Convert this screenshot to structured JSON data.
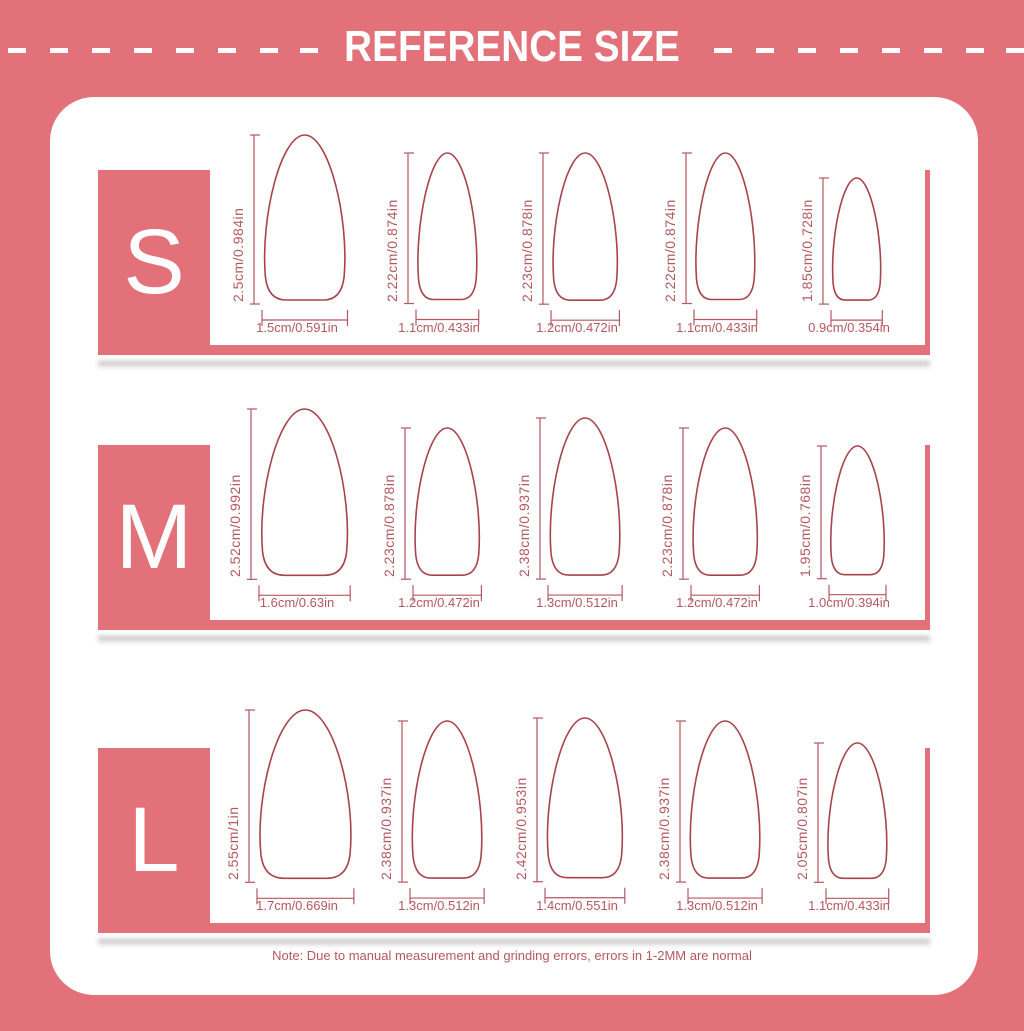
{
  "title": "REFERENCE SIZE",
  "colors": {
    "brand_pink": "#e2717a",
    "label_text": "#b5575f",
    "nail_outline": "#a8434c"
  },
  "rows": [
    {
      "size": "S",
      "nails": [
        {
          "length_cm": 2.5,
          "width_cm": 1.5,
          "length_label": "2.5cm/0.984in",
          "width_label": "1.5cm/0.591in"
        },
        {
          "length_cm": 2.22,
          "width_cm": 1.1,
          "length_label": "2.22cm/0.874in",
          "width_label": "1.1cm/0.433in"
        },
        {
          "length_cm": 2.23,
          "width_cm": 1.2,
          "length_label": "2.23cm/0.878in",
          "width_label": "1.2cm/0.472in"
        },
        {
          "length_cm": 2.22,
          "width_cm": 1.1,
          "length_label": "2.22cm/0.874in",
          "width_label": "1.1cm/0.433in"
        },
        {
          "length_cm": 1.85,
          "width_cm": 0.9,
          "length_label": "1.85cm/0.728in",
          "width_label": "0.9cm/0.354in"
        }
      ]
    },
    {
      "size": "M",
      "nails": [
        {
          "length_cm": 2.52,
          "width_cm": 1.6,
          "length_label": "2.52cm/0.992in",
          "width_label": "1.6cm/0.63in"
        },
        {
          "length_cm": 2.23,
          "width_cm": 1.2,
          "length_label": "2.23cm/0.878in",
          "width_label": "1.2cm/0.472in"
        },
        {
          "length_cm": 2.38,
          "width_cm": 1.3,
          "length_label": "2.38cm/0.937in",
          "width_label": "1.3cm/0.512in"
        },
        {
          "length_cm": 2.23,
          "width_cm": 1.2,
          "length_label": "2.23cm/0.878in",
          "width_label": "1.2cm/0.472in"
        },
        {
          "length_cm": 1.95,
          "width_cm": 1.0,
          "length_label": "1.95cm/0.768in",
          "width_label": "1.0cm/0.394in"
        }
      ]
    },
    {
      "size": "L",
      "nails": [
        {
          "length_cm": 2.55,
          "width_cm": 1.7,
          "length_label": "2.55cm/1in",
          "width_label": "1.7cm/0.669in"
        },
        {
          "length_cm": 2.38,
          "width_cm": 1.3,
          "length_label": "2.38cm/0.937in",
          "width_label": "1.3cm/0.512in"
        },
        {
          "length_cm": 2.42,
          "width_cm": 1.4,
          "length_label": "2.42cm/0.953in",
          "width_label": "1.4cm/0.551in"
        },
        {
          "length_cm": 2.38,
          "width_cm": 1.3,
          "length_label": "2.38cm/0.937in",
          "width_label": "1.3cm/0.512in"
        },
        {
          "length_cm": 2.05,
          "width_cm": 1.1,
          "length_label": "2.05cm/0.807in",
          "width_label": "1.1cm/0.433in"
        }
      ]
    }
  ],
  "note": "Note: Due to manual measurement and grinding errors, errors in 1-2MM are normal"
}
